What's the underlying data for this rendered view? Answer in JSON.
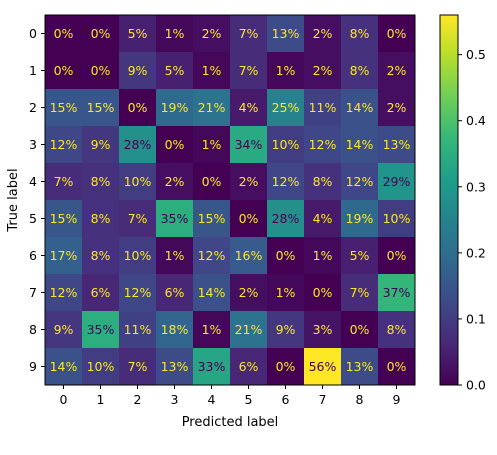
{
  "chart_data": {
    "type": "heatmap",
    "title": "",
    "xlabel": "Predicted label",
    "ylabel": "True label",
    "x_categories": [
      "0",
      "1",
      "2",
      "3",
      "4",
      "5",
      "6",
      "7",
      "8",
      "9"
    ],
    "y_categories": [
      "0",
      "1",
      "2",
      "3",
      "4",
      "5",
      "6",
      "7",
      "8",
      "9"
    ],
    "values": [
      [
        0.0,
        0.0,
        0.05,
        0.01,
        0.02,
        0.07,
        0.13,
        0.02,
        0.08,
        0.0
      ],
      [
        0.0,
        0.0,
        0.09,
        0.05,
        0.01,
        0.07,
        0.01,
        0.02,
        0.08,
        0.02
      ],
      [
        0.15,
        0.15,
        0.0,
        0.19,
        0.21,
        0.04,
        0.25,
        0.11,
        0.14,
        0.02
      ],
      [
        0.12,
        0.09,
        0.28,
        0.0,
        0.01,
        0.34,
        0.1,
        0.12,
        0.14,
        0.13
      ],
      [
        0.07,
        0.08,
        0.1,
        0.02,
        0.0,
        0.02,
        0.12,
        0.08,
        0.12,
        0.29
      ],
      [
        0.15,
        0.08,
        0.07,
        0.35,
        0.15,
        0.0,
        0.28,
        0.04,
        0.19,
        0.1
      ],
      [
        0.17,
        0.08,
        0.1,
        0.01,
        0.12,
        0.16,
        0.0,
        0.01,
        0.05,
        0.0
      ],
      [
        0.12,
        0.06,
        0.12,
        0.06,
        0.14,
        0.02,
        0.01,
        0.0,
        0.07,
        0.37
      ],
      [
        0.09,
        0.35,
        0.11,
        0.18,
        0.01,
        0.21,
        0.09,
        0.03,
        0.0,
        0.08
      ],
      [
        0.14,
        0.1,
        0.07,
        0.13,
        0.33,
        0.06,
        0.0,
        0.56,
        0.13,
        0.0
      ]
    ],
    "cell_labels": [
      [
        "0%",
        "0%",
        "5%",
        "1%",
        "2%",
        "7%",
        "13%",
        "2%",
        "8%",
        "0%"
      ],
      [
        "0%",
        "0%",
        "9%",
        "5%",
        "1%",
        "7%",
        "1%",
        "2%",
        "8%",
        "2%"
      ],
      [
        "15%",
        "15%",
        "0%",
        "19%",
        "21%",
        "4%",
        "25%",
        "11%",
        "14%",
        "2%"
      ],
      [
        "12%",
        "9%",
        "28%",
        "0%",
        "1%",
        "34%",
        "10%",
        "12%",
        "14%",
        "13%"
      ],
      [
        "7%",
        "8%",
        "10%",
        "2%",
        "0%",
        "2%",
        "12%",
        "8%",
        "12%",
        "29%"
      ],
      [
        "15%",
        "8%",
        "7%",
        "35%",
        "15%",
        "0%",
        "28%",
        "4%",
        "19%",
        "10%"
      ],
      [
        "17%",
        "8%",
        "10%",
        "1%",
        "12%",
        "16%",
        "0%",
        "1%",
        "5%",
        "0%"
      ],
      [
        "12%",
        "6%",
        "12%",
        "6%",
        "14%",
        "2%",
        "1%",
        "0%",
        "7%",
        "37%"
      ],
      [
        "9%",
        "35%",
        "11%",
        "18%",
        "1%",
        "21%",
        "9%",
        "3%",
        "0%",
        "8%"
      ],
      [
        "14%",
        "10%",
        "7%",
        "13%",
        "33%",
        "6%",
        "0%",
        "56%",
        "13%",
        "0%"
      ]
    ],
    "colormap": "viridis",
    "colorbar": {
      "range": [
        0.0,
        0.56
      ],
      "ticks": [
        0.0,
        0.1,
        0.2,
        0.3,
        0.4,
        0.5
      ],
      "tick_labels": [
        "0.0",
        "0.1",
        "0.2",
        "0.3",
        "0.4",
        "0.5"
      ]
    },
    "text_colors": {
      "light": "#fde725",
      "dark": "#440154"
    },
    "legend": "none",
    "grid": false
  }
}
